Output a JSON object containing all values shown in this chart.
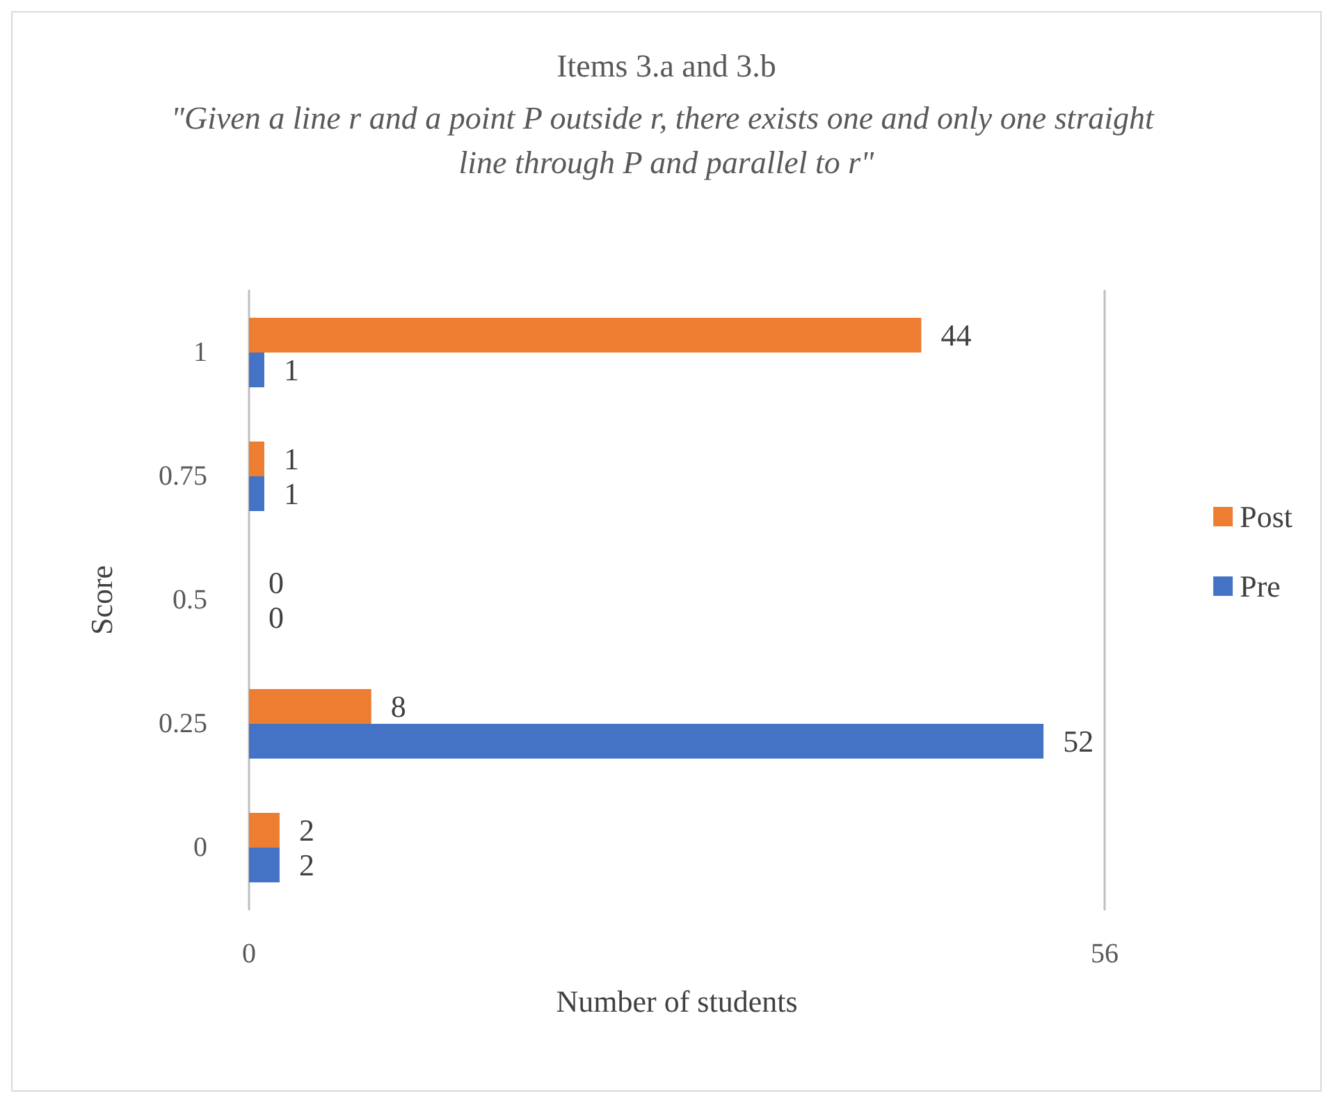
{
  "chart_data": {
    "type": "bar",
    "orientation": "horizontal",
    "title": "Items 3.a and 3.b",
    "subtitle": "\"Given a line r and a point P outside r, there exists one and only one straight line through P and parallel to r\"",
    "xlabel": "Number of students",
    "ylabel": "Score",
    "categories": [
      "1",
      "0.75",
      "0.5",
      "0.25",
      "0"
    ],
    "series": [
      {
        "name": "Post",
        "color": "#ed7d31",
        "values": [
          44,
          1,
          0,
          8,
          2
        ]
      },
      {
        "name": "Pre",
        "color": "#4472c4",
        "values": [
          1,
          1,
          0,
          52,
          2
        ]
      }
    ],
    "xlim": [
      0,
      56
    ],
    "xticks": [
      0,
      56
    ],
    "legend": "right",
    "data_labels": true
  }
}
